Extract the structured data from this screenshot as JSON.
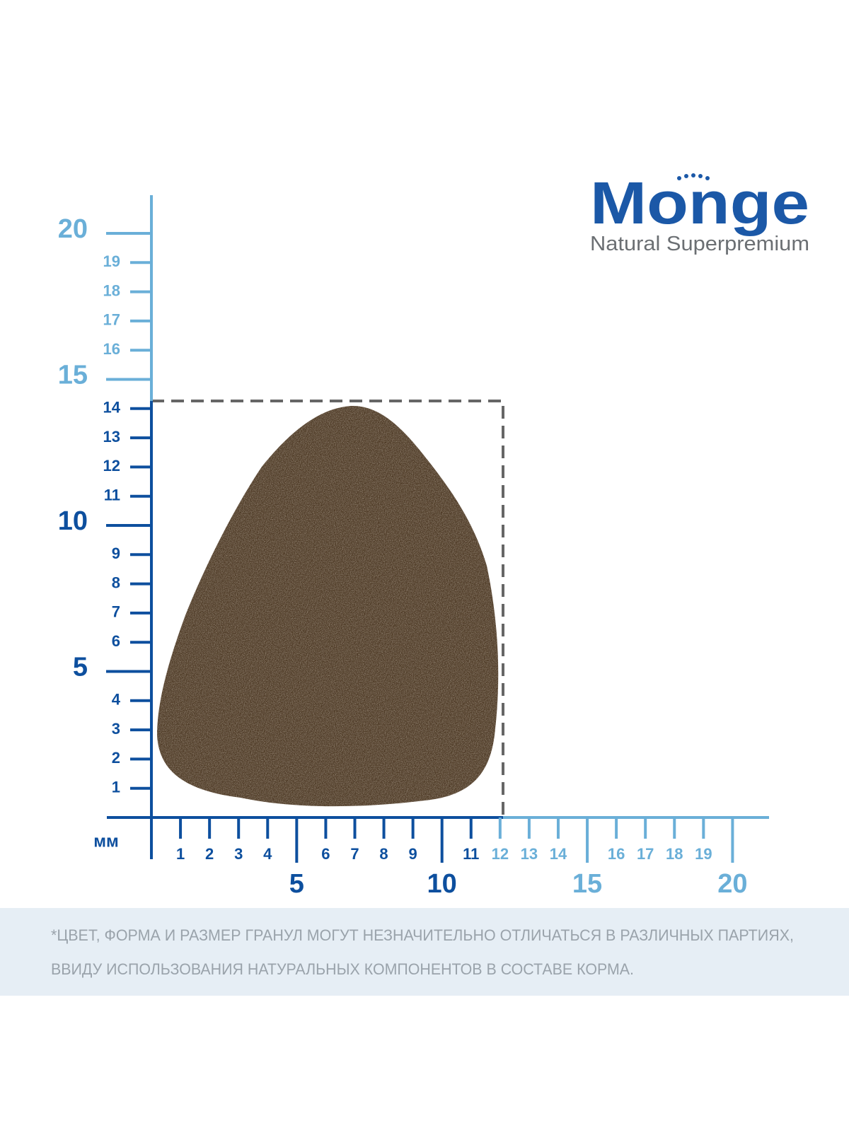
{
  "logo": {
    "brand": "Monge",
    "tagline": "Natural Superpremium"
  },
  "ruler": {
    "unit": "мм",
    "vertical": [
      {
        "color": "#0d4f9e",
        "minor": [
          1,
          2,
          3,
          4,
          6,
          7,
          8,
          9,
          11,
          12,
          13,
          14
        ],
        "major": [
          5,
          10
        ]
      },
      {
        "color": "#6aafd8",
        "minor": [
          16,
          17,
          18,
          19
        ],
        "major": [
          15,
          20
        ]
      }
    ],
    "horizontal": [
      {
        "color": "#0d4f9e",
        "minor": [
          1,
          2,
          3,
          4,
          6,
          7,
          8,
          9,
          11
        ],
        "major": [
          5,
          10
        ]
      },
      {
        "color": "#6aafd8",
        "minor": [
          12,
          13,
          14,
          16,
          17,
          18,
          19
        ],
        "major": [
          15,
          20
        ]
      }
    ]
  },
  "note": {
    "lines": [
      "*ЦВЕТ, ФОРМА И РАЗМЕР ГРАНУЛ МОГУТ НЕЗНАЧИТЕЛЬНО ОТЛИЧАТЬСЯ В РАЗЛИЧНЫХ ПАРТИЯХ,",
      "ВВИДУ ИСПОЛЬЗОВАНИЯ НАТУРАЛЬНЫХ КОМПОНЕНТОВ В СОСТАВЕ КОРМА."
    ]
  }
}
